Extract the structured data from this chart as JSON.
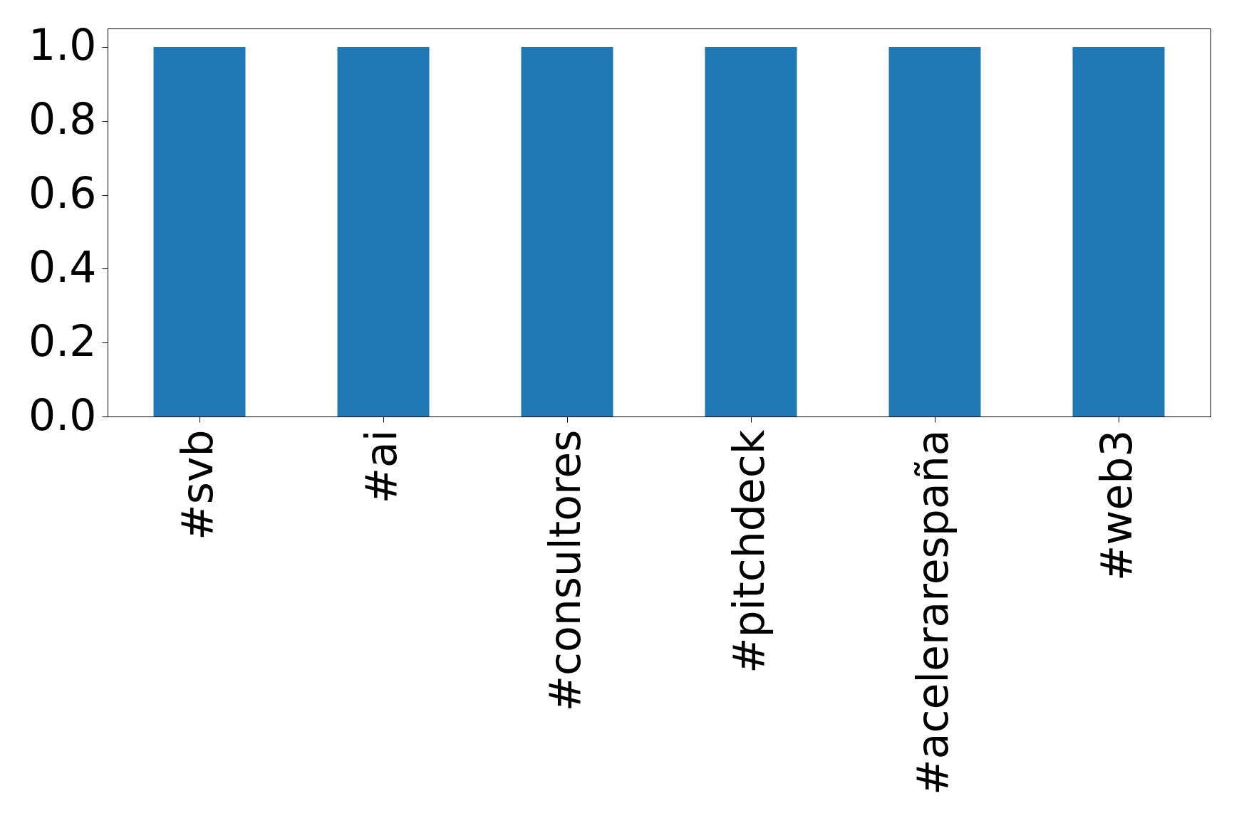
{
  "chart_data": {
    "type": "bar",
    "categories": [
      "#svb",
      "#ai",
      "#consultores",
      "#pitchdeck",
      "#acelerarespaña",
      "#web3"
    ],
    "values": [
      1.0,
      1.0,
      1.0,
      1.0,
      1.0,
      1.0
    ],
    "color": "#1f77b4",
    "ylim": [
      0,
      1.05
    ],
    "yticks": [
      {
        "value": 0,
        "label": "0.0"
      },
      0.2,
      0.4,
      0.6,
      0.8,
      {
        "value": 1,
        "label": "1.0"
      }
    ],
    "grid": false
  }
}
